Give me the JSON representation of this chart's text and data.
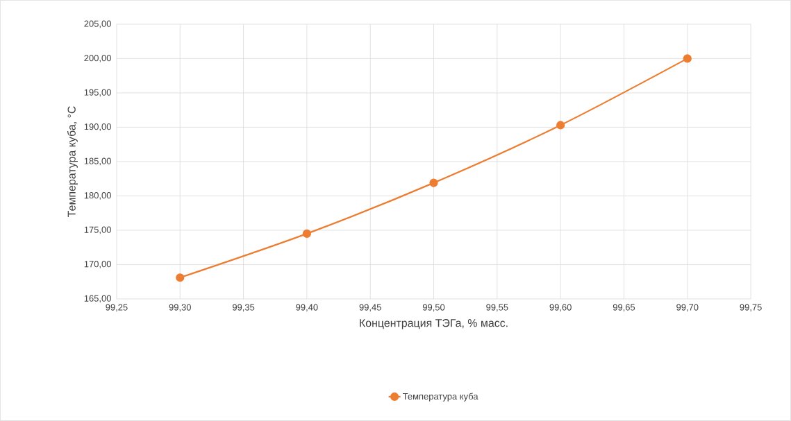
{
  "chart_data": {
    "type": "line",
    "xlabel": "Концентрация ТЭГа, % масс.",
    "ylabel": "Температура куба, °C",
    "x": [
      99.3,
      99.4,
      99.5,
      99.6,
      99.7
    ],
    "series": [
      {
        "name": "Температура куба",
        "color": "#ed7d31",
        "values": [
          168.1,
          174.5,
          181.9,
          190.3,
          200.0
        ]
      }
    ],
    "xlim": [
      99.25,
      99.75
    ],
    "xticks": [
      {
        "value": 99.25,
        "label": "99,25"
      },
      {
        "value": 99.3,
        "label": "99,30"
      },
      {
        "value": 99.35,
        "label": "99,35"
      },
      {
        "value": 99.4,
        "label": "99,40"
      },
      {
        "value": 99.45,
        "label": "99,45"
      },
      {
        "value": 99.5,
        "label": "99,50"
      },
      {
        "value": 99.55,
        "label": "99,55"
      },
      {
        "value": 99.6,
        "label": "99,60"
      },
      {
        "value": 99.65,
        "label": "99,65"
      },
      {
        "value": 99.7,
        "label": "99,70"
      },
      {
        "value": 99.75,
        "label": "99,75"
      }
    ],
    "ylim": [
      165,
      205
    ],
    "yticks": [
      {
        "value": 165,
        "label": "165,00"
      },
      {
        "value": 170,
        "label": "170,00"
      },
      {
        "value": 175,
        "label": "175,00"
      },
      {
        "value": 180,
        "label": "180,00"
      },
      {
        "value": 185,
        "label": "185,00"
      },
      {
        "value": 190,
        "label": "190,00"
      },
      {
        "value": 195,
        "label": "195,00"
      },
      {
        "value": 200,
        "label": "200,00"
      },
      {
        "value": 205,
        "label": "205,00"
      }
    ],
    "grid": true,
    "legend": "bottom",
    "marker": "circle",
    "line_style": "solid"
  }
}
